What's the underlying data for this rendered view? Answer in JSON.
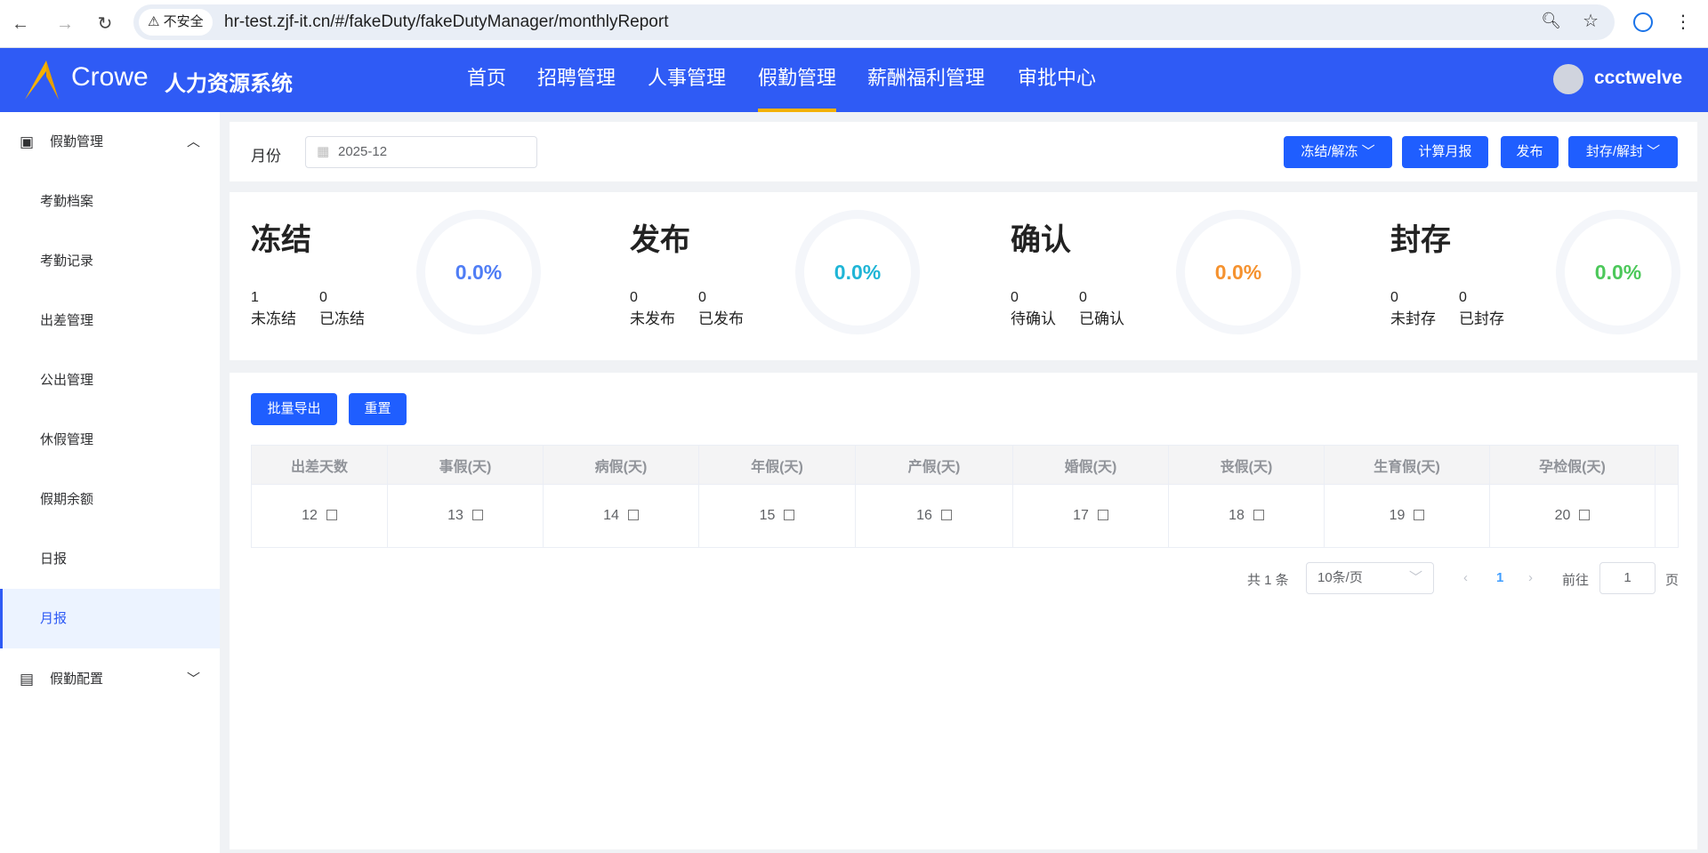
{
  "browser": {
    "insecure_label": "不安全",
    "url": "hr-test.zjf-it.cn/#/fakeDuty/fakeDutyManager/monthlyReport"
  },
  "header": {
    "brand": "Crowe",
    "system_name": "人力资源系统",
    "nav": [
      "首页",
      "招聘管理",
      "人事管理",
      "假勤管理",
      "薪酬福利管理",
      "审批中心"
    ],
    "active_nav": "假勤管理",
    "username": "ccctwelve"
  },
  "sidebar": {
    "group": "假勤管理",
    "items": [
      "考勤档案",
      "考勤记录",
      "出差管理",
      "公出管理",
      "休假管理",
      "假期余额",
      "日报",
      "月报"
    ],
    "active": "月报",
    "group2": "假勤配置"
  },
  "filter": {
    "month_label": "月份",
    "month_value": "2025-12"
  },
  "toolbar": {
    "freeze": "冻结/解冻",
    "calc": "计算月报",
    "publish": "发布",
    "archive": "封存/解封"
  },
  "stats": [
    {
      "title": "冻结",
      "a_val": "1",
      "a_lbl": "未冻结",
      "b_val": "0",
      "b_lbl": "已冻结",
      "percent": "0.0%",
      "color": "#4f7df5"
    },
    {
      "title": "发布",
      "a_val": "0",
      "a_lbl": "未发布",
      "b_val": "0",
      "b_lbl": "已发布",
      "percent": "0.0%",
      "color": "#1fb5d6"
    },
    {
      "title": "确认",
      "a_val": "0",
      "a_lbl": "待确认",
      "b_val": "0",
      "b_lbl": "已确认",
      "percent": "0.0%",
      "color": "#f5922f"
    },
    {
      "title": "封存",
      "a_val": "0",
      "a_lbl": "未封存",
      "b_val": "0",
      "b_lbl": "已封存",
      "percent": "0.0%",
      "color": "#4cc85a"
    }
  ],
  "actions": {
    "export": "批量导出",
    "reset": "重置"
  },
  "table": {
    "headers": [
      "出差天数",
      "事假(天)",
      "病假(天)",
      "年假(天)",
      "产假(天)",
      "婚假(天)",
      "丧假(天)",
      "生育假(天)",
      "孕检假(天)",
      ""
    ],
    "rows": [
      [
        "12",
        "13",
        "14",
        "15",
        "16",
        "17",
        "18",
        "19",
        "20",
        ""
      ]
    ]
  },
  "pagination": {
    "total": "共 1 条",
    "page_size": "10条/页",
    "current": "1",
    "goto_label": "前往",
    "goto_value": "1",
    "page_suffix": "页"
  }
}
